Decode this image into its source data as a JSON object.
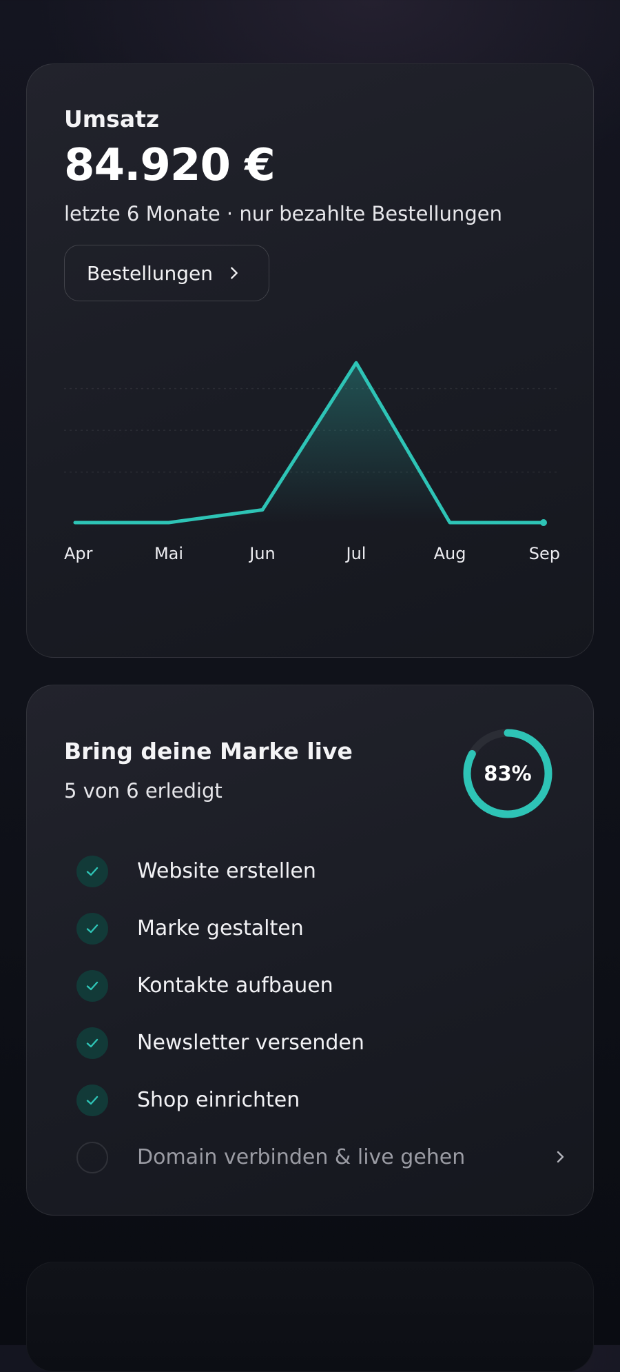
{
  "revenue": {
    "label": "Umsatz",
    "amount": "84.920 €",
    "subtitle": "letzte 6 Monate · nur bezahlte Bestellungen",
    "orders_button": "Bestellungen",
    "accent_color": "#2ec4b6",
    "chevron_icon": "chevron-right-icon"
  },
  "chart_data": {
    "type": "area",
    "categories": [
      "Apr",
      "Mai",
      "Jun",
      "Jul",
      "Aug",
      "Sep"
    ],
    "values": [
      0,
      0,
      8,
      100,
      0,
      0
    ],
    "ylim": [
      0,
      110
    ],
    "grid": true,
    "title": "",
    "xlabel": "",
    "ylabel": "",
    "color": "#2ec4b6"
  },
  "launch": {
    "title": "Bring deine Marke live",
    "progress_text": "5 von 6 erledigt",
    "percent_label": "83%",
    "progress": 0.83,
    "tasks": [
      {
        "label": "Website erstellen",
        "done": true
      },
      {
        "label": "Marke gestalten",
        "done": true
      },
      {
        "label": "Kontakte aufbauen",
        "done": true
      },
      {
        "label": "Newsletter versenden",
        "done": true
      },
      {
        "label": "Shop einrichten",
        "done": true
      },
      {
        "label": "Domain verbinden & live gehen",
        "done": false
      }
    ],
    "check_icon": "check-icon"
  }
}
